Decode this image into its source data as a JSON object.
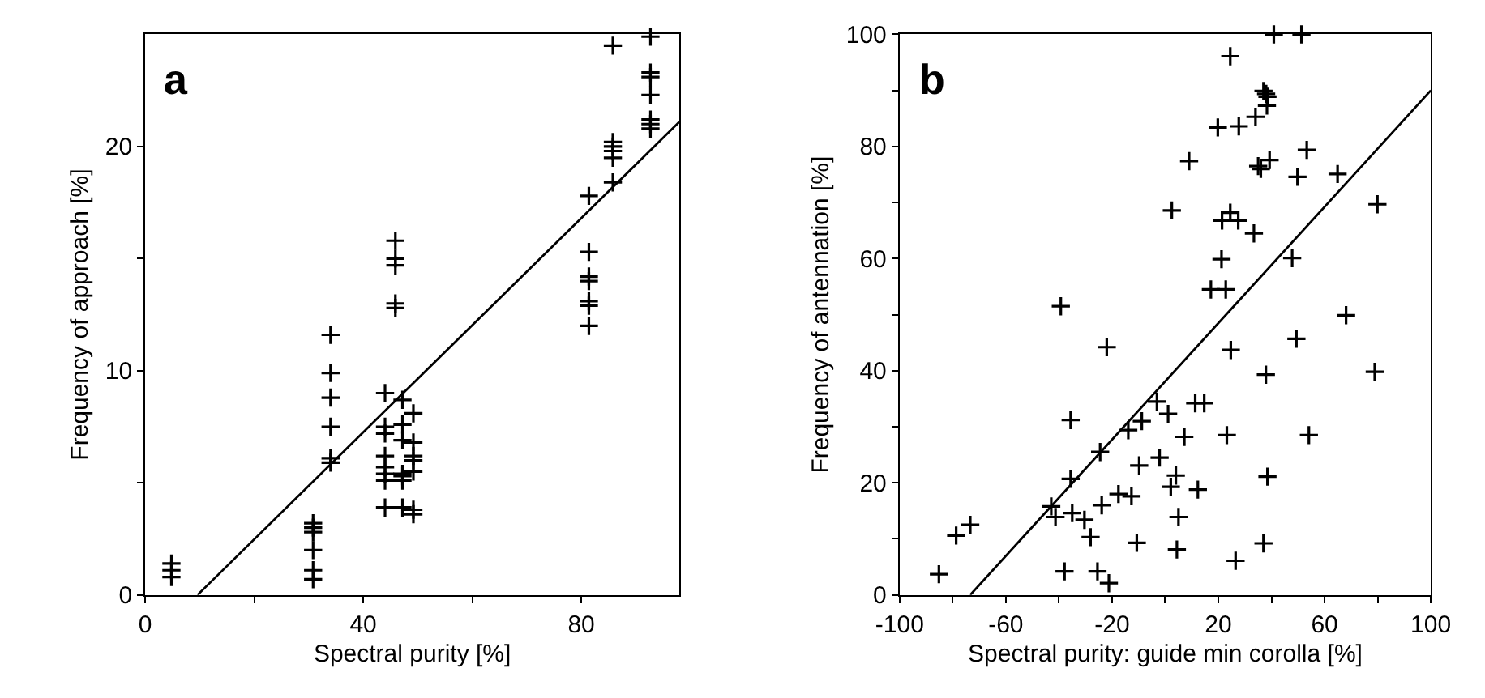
{
  "chart_data": [
    {
      "type": "scatter",
      "title": "a",
      "xlabel": "Spectral purity [%]",
      "ylabel": "Frequency of approach [%]",
      "xlim": [
        0,
        98
      ],
      "ylim": [
        0,
        25
      ],
      "xticks": [
        0,
        {
          "value": 20,
          "label": null
        },
        40,
        {
          "value": 60,
          "label": null
        },
        80
      ],
      "yticks": [
        0,
        {
          "value": 5,
          "label": null
        },
        10,
        {
          "value": 15,
          "label": null
        },
        20
      ],
      "series": [
        {
          "marker": "cross",
          "color": "#000000",
          "x": [
            4.8,
            4.8,
            4.8,
            30.8,
            30.8,
            30.8,
            30.8,
            30.8,
            30.8,
            34,
            34,
            34,
            34,
            34,
            34,
            44,
            44,
            44,
            44,
            44,
            44,
            44,
            44,
            45.9,
            45.9,
            45.9,
            45.9,
            45.9,
            47.2,
            47.2,
            47.2,
            47.2,
            47.2,
            47.2,
            47.2,
            49.2,
            49.2,
            49.2,
            49.2,
            49.2,
            49.2,
            49.2,
            81.4,
            81.4,
            81.4,
            81.4,
            81.4,
            81.4,
            81.4,
            85.8,
            85.8,
            85.8,
            85.8,
            85.8,
            85.8,
            92.7,
            92.7,
            92.7,
            92.7,
            92.7,
            92.7,
            92.7
          ],
          "values": [
            1.4,
            1.1,
            0.8,
            3.2,
            3.0,
            2.8,
            2.0,
            1.1,
            0.7,
            11.6,
            9.9,
            8.8,
            7.5,
            6.1,
            5.9,
            9.0,
            7.5,
            7.2,
            6.2,
            5.7,
            5.4,
            5.1,
            3.9,
            15.8,
            15.0,
            14.7,
            13.0,
            12.8,
            8.7,
            7.6,
            6.9,
            5.4,
            5.3,
            5.1,
            3.9,
            8.1,
            6.8,
            6.2,
            6.0,
            5.5,
            3.8,
            3.6,
            17.8,
            15.3,
            14.2,
            14.0,
            13.1,
            12.9,
            12.0,
            24.5,
            20.2,
            20.0,
            19.8,
            19.5,
            18.4,
            24.9,
            23.3,
            23.1,
            22.3,
            21.2,
            21.0,
            20.8
          ]
        },
        {
          "type": "line",
          "marker": "none",
          "color": "#000000",
          "x": [
            9.6,
            98
          ],
          "values": [
            0,
            21.1
          ]
        }
      ]
    },
    {
      "type": "scatter",
      "title": "b",
      "xlabel": "Spectral purity: guide min corolla [%]",
      "ylabel": "Frequency of antennation [%]",
      "xlim": [
        -100,
        100
      ],
      "ylim": [
        0,
        100
      ],
      "xticks": [
        -100,
        {
          "value": -80,
          "label": null
        },
        -60,
        {
          "value": -40,
          "label": null
        },
        -20,
        {
          "value": 0,
          "label": null
        },
        20,
        {
          "value": 40,
          "label": null
        },
        60,
        {
          "value": 80,
          "label": null
        },
        100
      ],
      "yticks": [
        0,
        {
          "value": 10,
          "label": null
        },
        20,
        {
          "value": 30,
          "label": null
        },
        40,
        {
          "value": 50,
          "label": null
        },
        60,
        {
          "value": 70,
          "label": null
        },
        80,
        {
          "value": 90,
          "label": null
        },
        100
      ],
      "series": [
        {
          "marker": "cross",
          "color": "#000000",
          "x": [
            40.9,
            51.3,
            24.5,
            37,
            38,
            38.5,
            38.3,
            34,
            19.8,
            27.7,
            9,
            35,
            36,
            39.3,
            53.3,
            49.8,
            64.9,
            79.9,
            2.5,
            21.4,
            24.5,
            27.5,
            33.4,
            21.2,
            17.2,
            22.8,
            47.8,
            68.1,
            -39.3,
            49.4,
            -22,
            24.7,
            37.9,
            78.9,
            -3.1,
            -8.8,
            -13.9,
            1.1,
            11.3,
            14.7,
            -35.6,
            7.2,
            23.2,
            54.1,
            -24.5,
            -9.8,
            -2.1,
            4,
            38.5,
            -35.6,
            -17.6,
            -12.7,
            2.1,
            12.3,
            -42.9,
            -41.3,
            -35,
            -30.4,
            -23.9,
            5,
            -73.4,
            -78.7,
            -28.1,
            -10.7,
            37,
            4.4,
            26.5,
            -37.9,
            -25.5,
            -21.2,
            -85.2
          ],
          "values": [
            100,
            100,
            96.1,
            89.9,
            89.4,
            88.9,
            87.3,
            85.3,
            83.4,
            83.6,
            77.4,
            76.5,
            76,
            77.6,
            79.4,
            74.6,
            75.1,
            69.7,
            68.6,
            66.8,
            68.2,
            66.8,
            64.5,
            59.9,
            54.5,
            54.5,
            60.1,
            49.9,
            51.5,
            45.7,
            44.2,
            43.7,
            39.3,
            39.8,
            34.5,
            31,
            29.4,
            32.3,
            34.2,
            34.2,
            31.2,
            28.2,
            28.5,
            28.5,
            25.5,
            23.1,
            24.5,
            21.3,
            21.1,
            20.7,
            18,
            17.6,
            19.3,
            18.8,
            15.8,
            13.9,
            14.6,
            13.4,
            16,
            13.9,
            12.5,
            10.6,
            10.3,
            9.3,
            9.2,
            8.1,
            6.1,
            4.2,
            4.2,
            2.1,
            3.7
          ]
        },
        {
          "type": "line",
          "marker": "none",
          "color": "#000000",
          "x": [
            -73.4,
            100
          ],
          "values": [
            0,
            90
          ]
        }
      ]
    }
  ]
}
